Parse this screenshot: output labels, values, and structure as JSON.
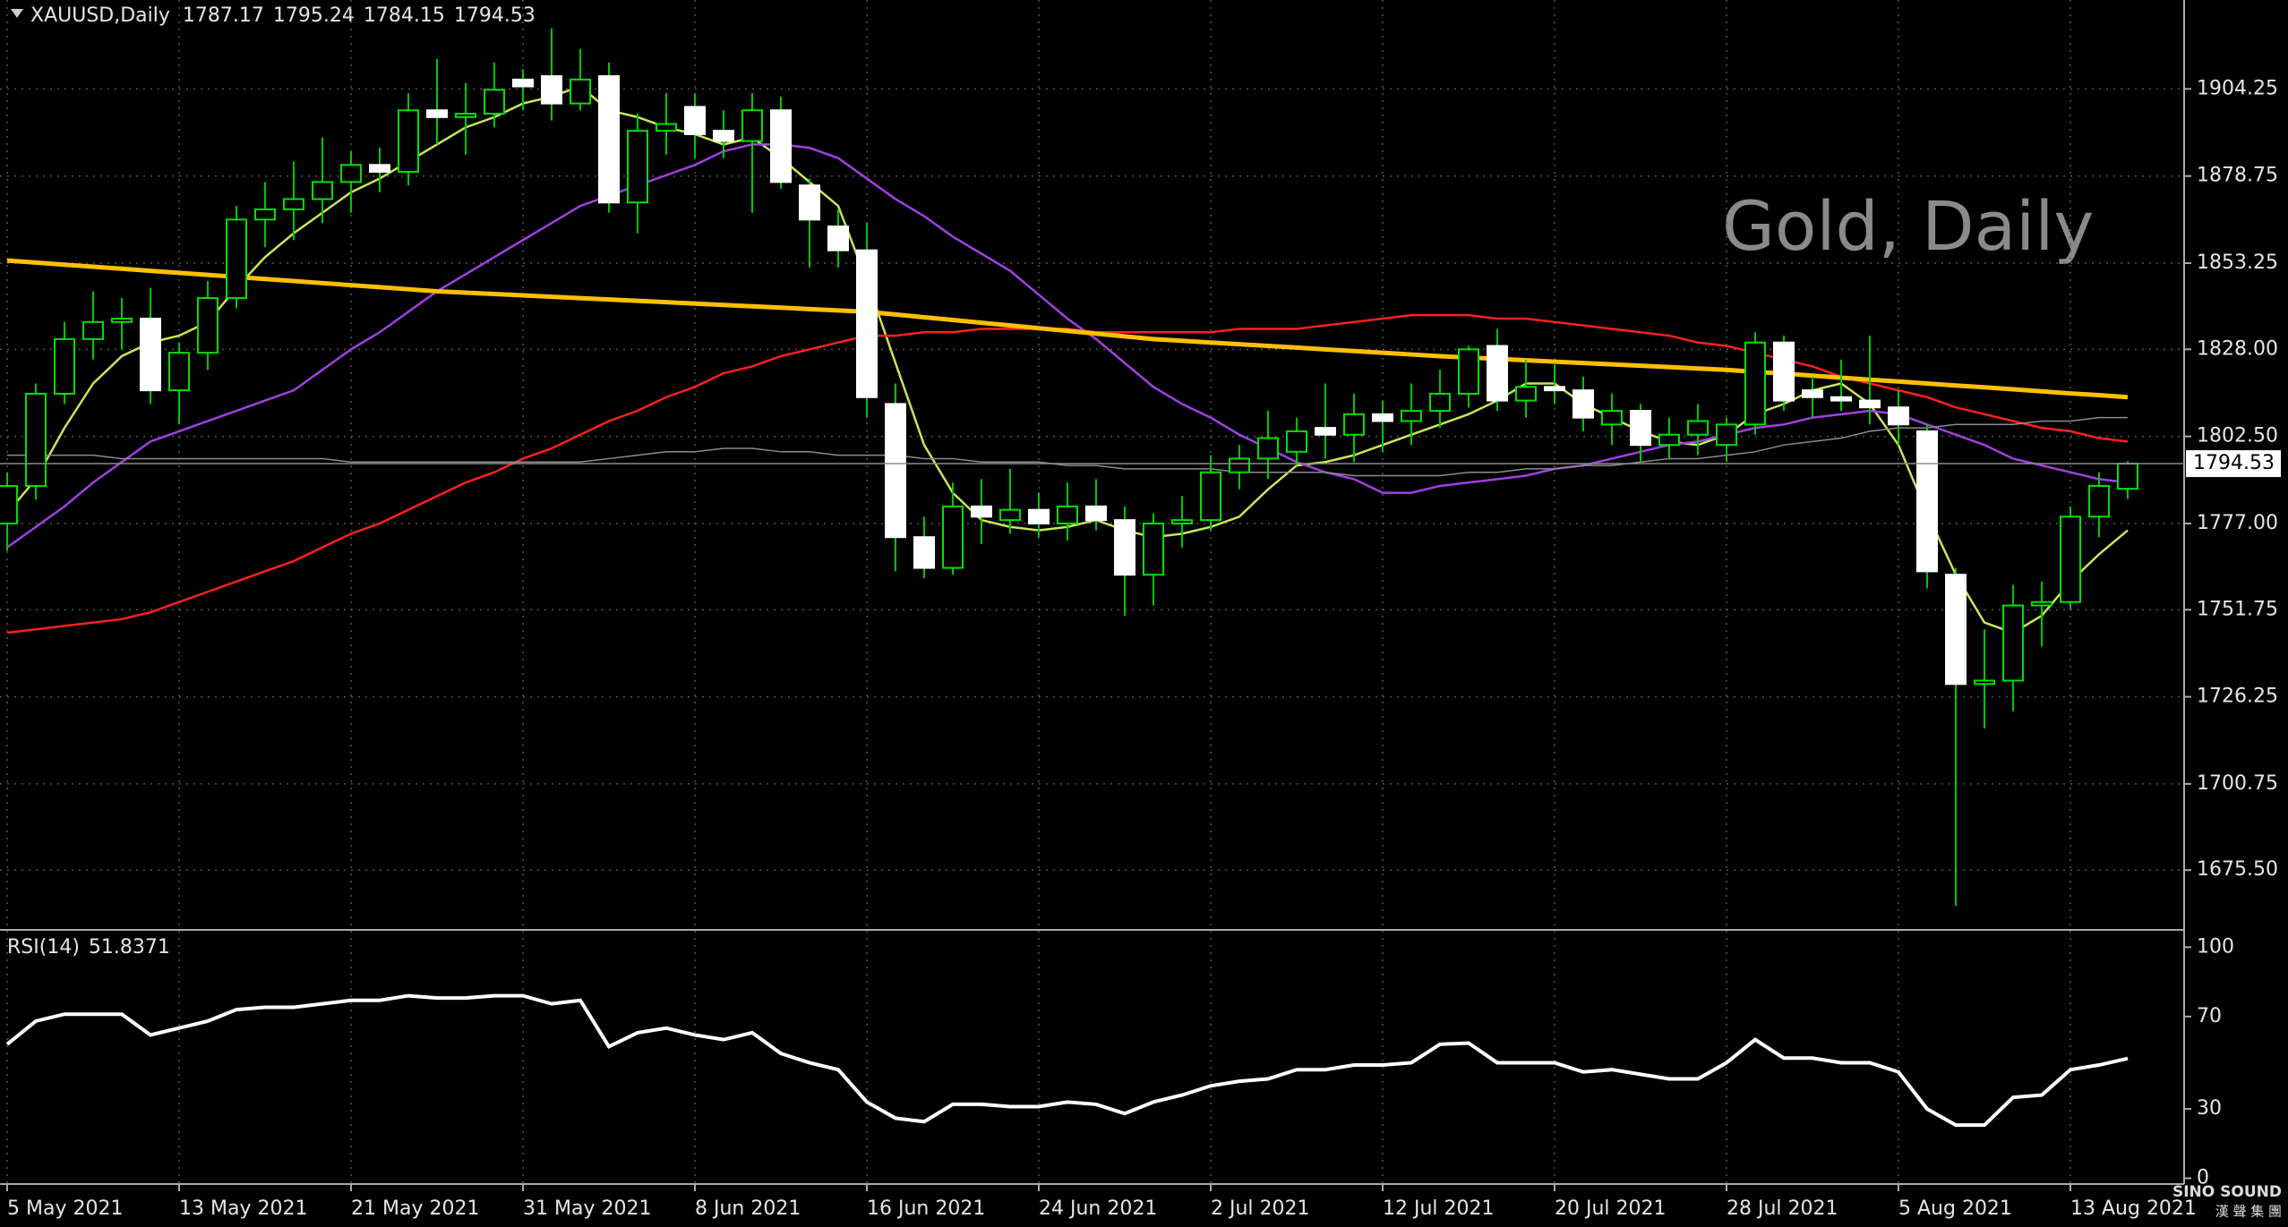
{
  "chart_data": [
    {
      "type": "candlestick",
      "title": "XAUUSD,Daily",
      "annotation": "Gold, Daily",
      "categories": [
        "5 May 2021",
        null,
        null,
        null,
        null,
        null,
        "13 May 2021",
        null,
        null,
        null,
        null,
        null,
        "21 May 2021",
        null,
        null,
        null,
        null,
        null,
        "31 May 2021",
        null,
        null,
        null,
        null,
        null,
        "8 Jun 2021",
        null,
        null,
        null,
        null,
        null,
        "16 Jun 2021",
        null,
        null,
        null,
        null,
        null,
        "24 Jun 2021",
        null,
        null,
        null,
        null,
        null,
        "2 Jul 2021",
        null,
        null,
        null,
        null,
        null,
        "12 Jul 2021",
        null,
        null,
        null,
        null,
        null,
        "20 Jul 2021",
        null,
        null,
        null,
        null,
        null,
        "28 Jul 2021",
        null,
        null,
        null,
        null,
        null,
        "5 Aug 2021",
        null,
        null,
        null,
        null,
        null,
        "13 Aug 2021",
        null,
        null
      ],
      "open": [
        1777,
        1788,
        1815,
        1831,
        1836,
        1837,
        1816,
        1827,
        1843,
        1866,
        1869,
        1872,
        1877,
        1882,
        1880,
        1898,
        1896,
        1897,
        1907,
        1908,
        1900,
        1908,
        1871,
        1892,
        1899,
        1892,
        1889,
        1898,
        1876,
        1864,
        1857,
        1812,
        1773,
        1764,
        1782,
        1778,
        1781,
        1777,
        1782,
        1778,
        1762,
        1777,
        1778,
        1792,
        1796,
        1798,
        1805,
        1803,
        1809,
        1807,
        1810,
        1815,
        1829,
        1813,
        1817,
        1816,
        1806,
        1810,
        1800,
        1803,
        1800,
        1806,
        1830,
        1816,
        1814,
        1813,
        1811,
        1804,
        1762,
        1730,
        1731,
        1753,
        1754,
        1779,
        1787.17
      ],
      "high": [
        1792,
        1818,
        1836,
        1845,
        1843,
        1846,
        1830,
        1848,
        1870,
        1877,
        1883,
        1890,
        1886,
        1887,
        1903,
        1913,
        1906,
        1912,
        1910,
        1922,
        1916,
        1912,
        1897,
        1903,
        1903,
        1898,
        1903,
        1902,
        1878,
        1869,
        1865,
        1818,
        1779,
        1789,
        1790,
        1793,
        1786,
        1789,
        1790,
        1782,
        1780,
        1785,
        1797,
        1800,
        1810,
        1808,
        1818,
        1815,
        1813,
        1818,
        1822,
        1829,
        1834,
        1825,
        1824,
        1820,
        1815,
        1812,
        1808,
        1812,
        1808,
        1833,
        1832,
        1820,
        1825,
        1832,
        1816,
        1806,
        1764,
        1746,
        1759,
        1760,
        1782,
        1792,
        1795.24
      ],
      "low": [
        1769,
        1784,
        1812,
        1825,
        1828,
        1812,
        1806,
        1822,
        1840,
        1858,
        1860,
        1865,
        1868,
        1874,
        1876,
        1888,
        1885,
        1893,
        1898,
        1895,
        1898,
        1868,
        1862,
        1885,
        1884,
        1884,
        1868,
        1875,
        1852,
        1852,
        1808,
        1763,
        1761,
        1762,
        1771,
        1774,
        1773,
        1772,
        1775,
        1750,
        1753,
        1770,
        1775,
        1787,
        1790,
        1794,
        1796,
        1795,
        1798,
        1800,
        1805,
        1811,
        1810,
        1808,
        1812,
        1804,
        1800,
        1795,
        1796,
        1797,
        1795,
        1803,
        1810,
        1808,
        1810,
        1806,
        1800,
        1758,
        1665,
        1717,
        1722,
        1741,
        1752,
        1773,
        1784.15
      ],
      "close": [
        1788,
        1815,
        1831,
        1836,
        1837,
        1816,
        1827,
        1843,
        1866,
        1869,
        1872,
        1877,
        1882,
        1880,
        1898,
        1896,
        1897,
        1904,
        1905,
        1900,
        1907,
        1871,
        1892,
        1894,
        1891,
        1889,
        1898,
        1877,
        1866,
        1857,
        1814,
        1773,
        1764,
        1782,
        1779,
        1781,
        1777,
        1782,
        1778,
        1762,
        1777,
        1778,
        1792,
        1796,
        1802,
        1804,
        1803,
        1809,
        1807,
        1810,
        1815,
        1828,
        1813,
        1817,
        1816,
        1808,
        1810,
        1800,
        1803,
        1807,
        1806,
        1830,
        1813,
        1814,
        1813,
        1811,
        1806,
        1763,
        1730,
        1731,
        1753,
        1754,
        1779,
        1788,
        1794.53
      ],
      "up_color": "#00e000",
      "down_color": "#ffffff",
      "wick_color": "#00c800",
      "ylim": [
        1658,
        1930.3
      ],
      "yticks": [
        1904.25,
        1878.75,
        1853.25,
        {
          "value": 1828,
          "label": "1828.00"
        },
        {
          "value": 1802.5,
          "label": "1802.50"
        },
        {
          "value": 1777,
          "label": "1777.00"
        },
        1751.75,
        1726.25,
        1700.75,
        {
          "value": 1675.5,
          "label": "1675.50"
        }
      ],
      "grid": true,
      "overlays": [
        {
          "color": "#c8e65a",
          "values": [
            1780,
            1790,
            1805,
            1818,
            1826,
            1830,
            1832,
            1836,
            1846,
            1855,
            1862,
            1868,
            1874,
            1878,
            1883,
            1888,
            1893,
            1896,
            1900,
            1902,
            1905,
            1898,
            1896,
            1893,
            1891,
            1888,
            1890,
            1884,
            1877,
            1870,
            1848,
            1824,
            1800,
            1786,
            1778,
            1776,
            1775,
            1776,
            1778,
            1775,
            1773,
            1774,
            1776,
            1779,
            1787,
            1794,
            1795,
            1797,
            1800,
            1803,
            1806,
            1809,
            1813,
            1818,
            1818,
            1812,
            1808,
            1804,
            1801,
            1800,
            1803,
            1809,
            1812,
            1816,
            1818,
            1812,
            1800,
            1780,
            1762,
            1748,
            1745,
            1750,
            1760,
            1768,
            1775
          ]
        },
        {
          "color": "#a040e0",
          "values": [
            1770,
            1776,
            1782,
            1789,
            1795,
            1801,
            1804,
            1807,
            1810,
            1813,
            1816,
            1822,
            1828,
            1833,
            1839,
            1845,
            1850,
            1855,
            1860,
            1865,
            1870,
            1873,
            1876,
            1879,
            1882,
            1886,
            1888,
            1888,
            1887,
            1884,
            1878,
            1872,
            1867,
            1861,
            1856,
            1851,
            1844,
            1837,
            1831,
            1824,
            1817,
            1812,
            1808,
            1803,
            1799,
            1795,
            1792,
            1790,
            1786,
            1786,
            1788,
            1789,
            1790,
            1791,
            1793,
            1794,
            1796,
            1798,
            1800,
            1801,
            1803,
            1805,
            1806,
            1808,
            1809,
            1810,
            1809,
            1806,
            1803,
            1800,
            1796,
            1794,
            1792,
            1790,
            1789
          ]
        },
        {
          "color": "#ff2020",
          "values": [
            1745,
            1746,
            1747,
            1748,
            1749,
            1751,
            1754,
            1757,
            1760,
            1763,
            1766,
            1770,
            1774,
            1777,
            1781,
            1785,
            1789,
            1792,
            1796,
            1799,
            1803,
            1807,
            1810,
            1814,
            1817,
            1821,
            1823,
            1826,
            1828,
            1830,
            1832,
            1832,
            1833,
            1833,
            1834,
            1834,
            1834,
            1834,
            1833,
            1833,
            1833,
            1833,
            1833,
            1834,
            1834,
            1834,
            1835,
            1836,
            1837,
            1838,
            1838,
            1838,
            1837,
            1837,
            1836,
            1835,
            1834,
            1833,
            1832,
            1830,
            1829,
            1827,
            1825,
            1823,
            1820,
            1818,
            1816,
            1814,
            1811,
            1809,
            1807,
            1805,
            1804,
            1802,
            1801
          ]
        },
        {
          "color": "#ffc000",
          "values": [
            1854,
            1853.4,
            1852.8,
            1852.2,
            1851.6,
            1851,
            1850.4,
            1849.8,
            1849.2,
            1848.6,
            1848,
            1847.4,
            1846.8,
            1846.2,
            1845.6,
            1845,
            1844.6,
            1844.2,
            1843.8,
            1843.4,
            1843,
            1842.6,
            1842.2,
            1841.8,
            1841.4,
            1841,
            1840.6,
            1840.2,
            1839.8,
            1839.4,
            1839,
            1838.2,
            1837.4,
            1836.6,
            1835.8,
            1835,
            1834.2,
            1833.4,
            1832.6,
            1831.8,
            1831,
            1830.5,
            1830,
            1829.5,
            1829,
            1828.5,
            1828,
            1827.5,
            1827,
            1826.5,
            1826,
            1825.6,
            1825.2,
            1824.8,
            1824.4,
            1824,
            1823.6,
            1823.2,
            1822.8,
            1822.4,
            1822,
            1821.4,
            1820.9,
            1820.3,
            1819.7,
            1819.1,
            1818.6,
            1818,
            1817.4,
            1816.9,
            1816.3,
            1815.7,
            1815.1,
            1814.6,
            1814
          ]
        },
        {
          "color": "#8c8c8c",
          "values": [
            1797,
            1797,
            1797,
            1797,
            1796,
            1796,
            1796,
            1796,
            1796,
            1796,
            1796,
            1796,
            1795,
            1795,
            1795,
            1795,
            1795,
            1795,
            1795,
            1795,
            1795,
            1796,
            1797,
            1798,
            1798,
            1799,
            1799,
            1798,
            1798,
            1797,
            1797,
            1797,
            1796,
            1796,
            1795,
            1795,
            1795,
            1794,
            1794,
            1793,
            1793,
            1793,
            1793,
            1792,
            1792,
            1792,
            1792,
            1791,
            1791,
            1791,
            1791,
            1792,
            1792,
            1793,
            1793,
            1794,
            1794,
            1795,
            1796,
            1796,
            1797,
            1798,
            1800,
            1801,
            1802,
            1804,
            1805,
            1805,
            1806,
            1806,
            1806,
            1807,
            1807,
            1808,
            1808
          ]
        }
      ]
    },
    {
      "type": "line",
      "title": "RSI(14)",
      "color": "#ffffff",
      "values": [
        58,
        68,
        71,
        71,
        71,
        62,
        65,
        68,
        73,
        74,
        74,
        75.5,
        77,
        77,
        79,
        78,
        78,
        79,
        79,
        75.5,
        77,
        57,
        63,
        65,
        62,
        60,
        63,
        54,
        50,
        47,
        33,
        26,
        24.5,
        32,
        32,
        31,
        31,
        33,
        32,
        28,
        33,
        36,
        40,
        42,
        43,
        47,
        47,
        49,
        49,
        50,
        58,
        58.5,
        50,
        50,
        50,
        46,
        47,
        45,
        43,
        43,
        50,
        60,
        52,
        52,
        50,
        50,
        46,
        30,
        23,
        23,
        35,
        36,
        47,
        49,
        51.8371
      ],
      "ylim": [
        -2.5,
        107.5
      ],
      "yticks": [
        100,
        70,
        30,
        0
      ]
    }
  ],
  "logo": {
    "text": "SINO SOUND",
    "subtext": "漢 聲 集 團"
  }
}
